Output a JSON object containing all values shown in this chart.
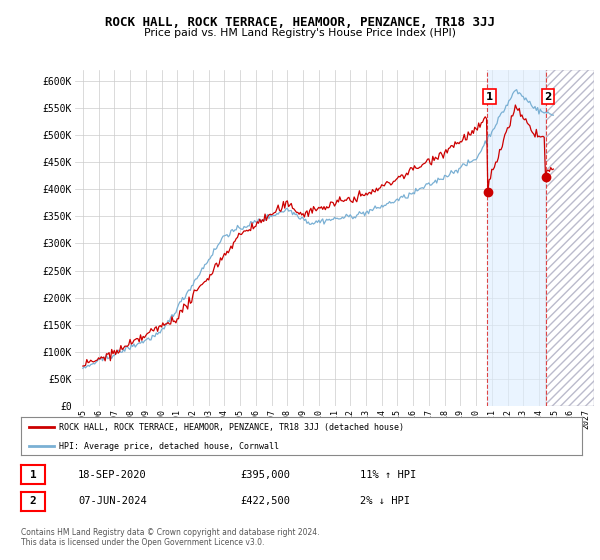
{
  "title": "ROCK HALL, ROCK TERRACE, HEAMOOR, PENZANCE, TR18 3JJ",
  "subtitle": "Price paid vs. HM Land Registry's House Price Index (HPI)",
  "ylim": [
    0,
    620000
  ],
  "yticks": [
    0,
    50000,
    100000,
    150000,
    200000,
    250000,
    300000,
    350000,
    400000,
    450000,
    500000,
    550000,
    600000
  ],
  "ytick_labels": [
    "£0",
    "£50K",
    "£100K",
    "£150K",
    "£200K",
    "£250K",
    "£300K",
    "£350K",
    "£400K",
    "£450K",
    "£500K",
    "£550K",
    "£600K"
  ],
  "line1_color": "#cc0000",
  "line2_color": "#7ab0d4",
  "vline1_x": 2020.72,
  "vline2_x": 2024.44,
  "shade_start": 2020.72,
  "shade_end": 2024.44,
  "hatch_start": 2024.44,
  "hatch_end": 2027.5,
  "sale1_value": 395000,
  "sale2_value": 422500,
  "legend_line1": "ROCK HALL, ROCK TERRACE, HEAMOOR, PENZANCE, TR18 3JJ (detached house)",
  "legend_line2": "HPI: Average price, detached house, Cornwall",
  "annotation1_num": "1",
  "annotation1_date": "18-SEP-2020",
  "annotation1_price": "£395,000",
  "annotation1_hpi": "11% ↑ HPI",
  "annotation2_num": "2",
  "annotation2_date": "07-JUN-2024",
  "annotation2_price": "£422,500",
  "annotation2_hpi": "2% ↓ HPI",
  "footer": "Contains HM Land Registry data © Crown copyright and database right 2024.\nThis data is licensed under the Open Government Licence v3.0.",
  "bg_color": "#ffffff",
  "grid_color": "#cccccc",
  "xlim_left": 1994.5,
  "xlim_right": 2027.5
}
